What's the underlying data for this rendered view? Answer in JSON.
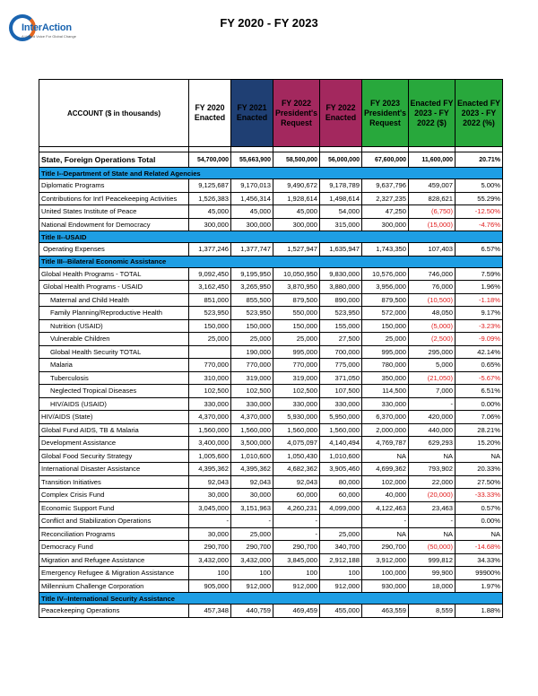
{
  "logo": {
    "name": "InterAction",
    "tagline": "A United Voice For Global Change"
  },
  "title": "FY 2020 - FY 2023",
  "columns": [
    {
      "label": "ACCOUNT  ($ in thousands)",
      "style": "acct"
    },
    {
      "label": "FY 2020 Enacted",
      "style": "plain"
    },
    {
      "label": "FY 2021 Enacted",
      "style": "blue"
    },
    {
      "label": "FY 2022 President's Request",
      "style": "maroon"
    },
    {
      "label": "FY 2022 Enacted",
      "style": "maroon"
    },
    {
      "label": "FY 2023 President's Request",
      "style": "green"
    },
    {
      "label": "Enacted FY 2023 - FY 2022 ($)",
      "style": "green"
    },
    {
      "label": "Enacted FY 2023 - FY 2022 (%)",
      "style": "green"
    }
  ],
  "colors": {
    "section_bar": "#1e9ee4",
    "fy2021_header": "#1f3f73",
    "fy2022_header": "#a3285e",
    "fy2023_header": "#28a83c",
    "negative": "#e01b1b"
  },
  "rows": [
    {
      "type": "spacer"
    },
    {
      "type": "total",
      "cells": [
        "State, Foreign Operations Total",
        "54,700,000",
        "55,663,900",
        "58,500,000",
        "56,000,000",
        "67,600,000",
        "11,600,000",
        "20.71%"
      ]
    },
    {
      "type": "section",
      "label": "Title I--Department of State and Related Agencies"
    },
    {
      "type": "row",
      "indent": 0,
      "cells": [
        "Diplomatic Programs",
        "9,125,687",
        "9,170,013",
        "9,490,672",
        "9,178,789",
        "9,637,796",
        "459,007",
        "5.00%"
      ]
    },
    {
      "type": "row",
      "indent": 0,
      "cells": [
        "Contributions for Int'l Peacekeeping Activities",
        "1,526,383",
        "1,456,314",
        "1,928,614",
        "1,498,614",
        "2,327,235",
        "828,621",
        "55.29%"
      ]
    },
    {
      "type": "row",
      "indent": 0,
      "neg": true,
      "cells": [
        "United States Institute of Peace",
        "45,000",
        "45,000",
        "45,000",
        "54,000",
        "47,250",
        "(6,750)",
        "-12.50%"
      ]
    },
    {
      "type": "row",
      "indent": 0,
      "neg": true,
      "cells": [
        "National Endowment for Democracy",
        "300,000",
        "300,000",
        "300,000",
        "315,000",
        "300,000",
        "(15,000)",
        "-4.76%"
      ]
    },
    {
      "type": "section",
      "label": "Title II--USAID"
    },
    {
      "type": "row",
      "indent": 1,
      "cells": [
        "Operating Expenses",
        "1,377,246",
        "1,377,747",
        "1,527,947",
        "1,635,947",
        "1,743,350",
        "107,403",
        "6.57%"
      ]
    },
    {
      "type": "section",
      "label": "Title III--Bilateral Economic Assistance"
    },
    {
      "type": "row",
      "indent": 0,
      "cells": [
        "Global Health Programs - TOTAL",
        "9,092,450",
        "9,195,950",
        "10,050,950",
        "9,830,000",
        "10,576,000",
        "746,000",
        "7.59%"
      ]
    },
    {
      "type": "row",
      "indent": 1,
      "cells": [
        "Global Health Programs - USAID",
        "3,162,450",
        "3,265,950",
        "3,870,950",
        "3,880,000",
        "3,956,000",
        "76,000",
        "1.96%"
      ]
    },
    {
      "type": "row",
      "indent": 2,
      "neg": true,
      "cells": [
        "Maternal and Child Health",
        "851,000",
        "855,500",
        "879,500",
        "890,000",
        "879,500",
        "(10,500)",
        "-1.18%"
      ]
    },
    {
      "type": "row",
      "indent": 2,
      "cells": [
        "Family Planning/Reproductive Health",
        "523,950",
        "523,950",
        "550,000",
        "523,950",
        "572,000",
        "48,050",
        "9.17%"
      ]
    },
    {
      "type": "row",
      "indent": 2,
      "neg": true,
      "cells": [
        "Nutrition (USAID)",
        "150,000",
        "150,000",
        "150,000",
        "155,000",
        "150,000",
        "(5,000)",
        "-3.23%"
      ]
    },
    {
      "type": "row",
      "indent": 2,
      "neg": true,
      "cells": [
        "Vulnerable Children",
        "25,000",
        "25,000",
        "25,000",
        "27,500",
        "25,000",
        "(2,500)",
        "-9.09%"
      ]
    },
    {
      "type": "row",
      "indent": 2,
      "cells": [
        "Global Health Security TOTAL",
        "",
        "190,000",
        "995,000",
        "700,000",
        "995,000",
        "295,000",
        "42.14%"
      ]
    },
    {
      "type": "row",
      "indent": 2,
      "cells": [
        "Malaria",
        "770,000",
        "770,000",
        "770,000",
        "775,000",
        "780,000",
        "5,000",
        "0.65%"
      ]
    },
    {
      "type": "row",
      "indent": 2,
      "neg": true,
      "cells": [
        "Tuberculosis",
        "310,000",
        "319,000",
        "319,000",
        "371,050",
        "350,000",
        "(21,050)",
        "-5.67%"
      ]
    },
    {
      "type": "row",
      "indent": 2,
      "cells": [
        "Neglected Tropical Diseases",
        "102,500",
        "102,500",
        "102,500",
        "107,500",
        "114,500",
        "7,000",
        "6.51%"
      ]
    },
    {
      "type": "row",
      "indent": 2,
      "cells": [
        "HIV/AIDS (USAID)",
        "330,000",
        "330,000",
        "330,000",
        "330,000",
        "330,000",
        "-",
        "0.00%"
      ]
    },
    {
      "type": "row",
      "indent": 0,
      "cells": [
        "HIV/AIDS (State)",
        "4,370,000",
        "4,370,000",
        "5,930,000",
        "5,950,000",
        "6,370,000",
        "420,000",
        "7.06%"
      ]
    },
    {
      "type": "row",
      "indent": 0,
      "cells": [
        "Global Fund AIDS, TB & Malaria",
        "1,560,000",
        "1,560,000",
        "1,560,000",
        "1,560,000",
        "2,000,000",
        "440,000",
        "28.21%"
      ]
    },
    {
      "type": "row",
      "indent": 0,
      "cells": [
        "Development Assistance",
        "3,400,000",
        "3,500,000",
        "4,075,097",
        "4,140,494",
        "4,769,787",
        "629,293",
        "15.20%"
      ]
    },
    {
      "type": "row",
      "indent": 0,
      "cells": [
        "Global Food Security Strategy",
        "1,005,600",
        "1,010,600",
        "1,050,430",
        "1,010,600",
        "NA",
        "NA",
        "NA"
      ]
    },
    {
      "type": "row",
      "indent": 0,
      "cells": [
        "International Disaster Assistance",
        "4,395,362",
        "4,395,362",
        "4,682,362",
        "3,905,460",
        "4,699,362",
        "793,902",
        "20.33%"
      ]
    },
    {
      "type": "row",
      "indent": 0,
      "cells": [
        "Transition Initiatives",
        "92,043",
        "92,043",
        "92,043",
        "80,000",
        "102,000",
        "22,000",
        "27.50%"
      ]
    },
    {
      "type": "row",
      "indent": 0,
      "neg": true,
      "cells": [
        "Complex Crisis Fund",
        "30,000",
        "30,000",
        "60,000",
        "60,000",
        "40,000",
        "(20,000)",
        "-33.33%"
      ]
    },
    {
      "type": "row",
      "indent": 0,
      "cells": [
        "Economic Support Fund",
        "3,045,000",
        "3,151,963",
        "4,260,231",
        "4,099,000",
        "4,122,463",
        "23,463",
        "0.57%"
      ]
    },
    {
      "type": "row",
      "indent": 0,
      "cells": [
        "Conflict and Stabilization Operations",
        "-",
        "-",
        "-",
        "",
        "-",
        "-",
        "0.00%"
      ]
    },
    {
      "type": "row",
      "indent": 0,
      "cells": [
        "Reconciliation Programs",
        "30,000",
        "25,000",
        "-",
        "25,000",
        "NA",
        "NA",
        "NA"
      ]
    },
    {
      "type": "row",
      "indent": 0,
      "neg": true,
      "cells": [
        "Democracy Fund",
        "290,700",
        "290,700",
        "290,700",
        "340,700",
        "290,700",
        "(50,000)",
        "-14.68%"
      ]
    },
    {
      "type": "row",
      "indent": 0,
      "cells": [
        "Migration and Refugee Assistance",
        "3,432,000",
        "3,432,000",
        "3,845,000",
        "2,912,188",
        "3,912,000",
        "999,812",
        "34.33%"
      ]
    },
    {
      "type": "row",
      "indent": 0,
      "cells": [
        "Emergency Refugee & Migration Assistance",
        "100",
        "100",
        "100",
        "100",
        "100,000",
        "99,900",
        "99900%"
      ]
    },
    {
      "type": "row",
      "indent": 0,
      "cells": [
        "Millennium Challenge Corporation",
        "905,000",
        "912,000",
        "912,000",
        "912,000",
        "930,000",
        "18,000",
        "1.97%"
      ]
    },
    {
      "type": "section",
      "label": "Title IV--International Security Assistance"
    },
    {
      "type": "row",
      "indent": 0,
      "cells": [
        "Peacekeeping Operations",
        "457,348",
        "440,759",
        "469,459",
        "455,000",
        "463,559",
        "8,559",
        "1.88%"
      ]
    }
  ]
}
